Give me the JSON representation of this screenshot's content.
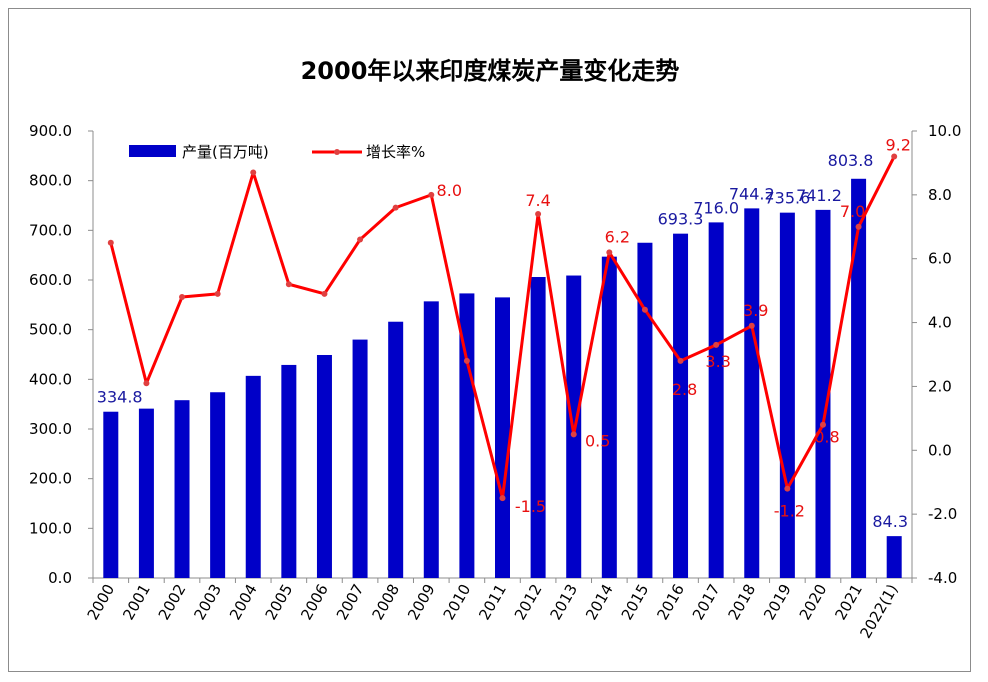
{
  "chart_data": {
    "type": "bar",
    "title": "2000年以来印度煤炭产量变化走势",
    "categories": [
      "2000",
      "2001",
      "2002",
      "2003",
      "2004",
      "2005",
      "2006",
      "2007",
      "2008",
      "2009",
      "2010",
      "2011",
      "2012",
      "2013",
      "2014",
      "2015",
      "2016",
      "2017",
      "2018",
      "2019",
      "2020",
      "2021",
      "2022(1)"
    ],
    "series": [
      {
        "name": "产量(百万吨)",
        "type": "bar",
        "axis": "left",
        "color": "#0000c8",
        "values": [
          334.8,
          341,
          358,
          374,
          407,
          429,
          449,
          480,
          516,
          557,
          573,
          565,
          606,
          609,
          647,
          675,
          693.3,
          716.0,
          744.2,
          735.6,
          741.2,
          803.8,
          84.3
        ]
      },
      {
        "name": "增长率%",
        "type": "line",
        "axis": "right",
        "color": "#ff0000",
        "values": [
          6.5,
          2.1,
          4.8,
          4.9,
          8.7,
          5.2,
          4.9,
          6.6,
          7.6,
          8.0,
          2.8,
          -1.5,
          7.4,
          0.5,
          6.2,
          4.4,
          2.8,
          3.3,
          3.9,
          -1.2,
          0.8,
          7.0,
          9.2
        ]
      }
    ],
    "bar_labels": [
      {
        "index": 0,
        "text": "334.8"
      },
      {
        "index": 16,
        "text": "693.3"
      },
      {
        "index": 17,
        "text": "716.0"
      },
      {
        "index": 18,
        "text": "744.2"
      },
      {
        "index": 19,
        "text": "735.6"
      },
      {
        "index": 20,
        "text": "741.2"
      },
      {
        "index": 21,
        "text": "803.8"
      },
      {
        "index": 22,
        "text": "84.3"
      }
    ],
    "rate_labels": [
      {
        "index": 9,
        "text": "8.0"
      },
      {
        "index": 11,
        "text": "-1.5"
      },
      {
        "index": 12,
        "text": "7.4"
      },
      {
        "index": 13,
        "text": "0.5"
      },
      {
        "index": 14,
        "text": "6.2"
      },
      {
        "index": 16,
        "text": "2.8"
      },
      {
        "index": 17,
        "text": "3.3"
      },
      {
        "index": 18,
        "text": "3.9"
      },
      {
        "index": 19,
        "text": "-1.2"
      },
      {
        "index": 20,
        "text": "0.8"
      },
      {
        "index": 21,
        "text": "7.0"
      },
      {
        "index": 22,
        "text": "9.2"
      }
    ],
    "left_axis": {
      "range": [
        0,
        900
      ],
      "ticks": [
        "0.0",
        "100.0",
        "200.0",
        "300.0",
        "400.0",
        "500.0",
        "600.0",
        "700.0",
        "800.0",
        "900.0"
      ]
    },
    "right_axis": {
      "range": [
        -4,
        10
      ],
      "ticks": [
        "-4.0",
        "-2.0",
        "0.0",
        "2.0",
        "4.0",
        "6.0",
        "8.0",
        "10.0"
      ]
    },
    "grid": false,
    "legend_position": "top-left"
  }
}
